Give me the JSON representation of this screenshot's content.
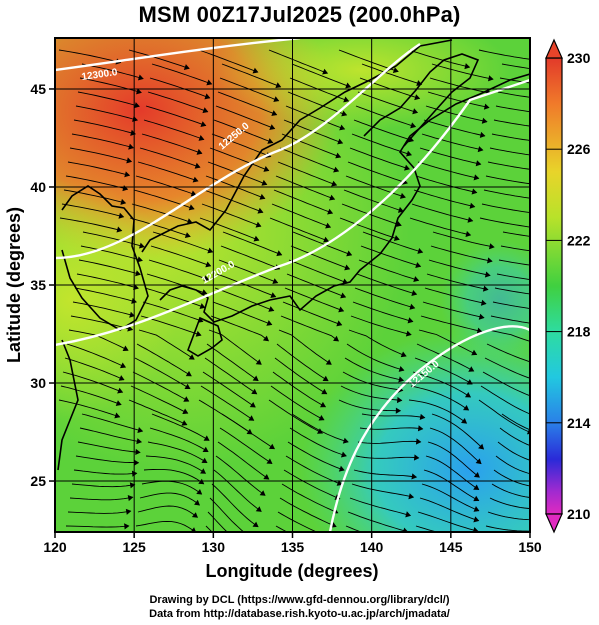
{
  "title": "MSM 00Z17Jul2025 (200.0hPa)",
  "xaxis": {
    "label": "Longitude (degrees)",
    "range": [
      120,
      150
    ],
    "ticks": [
      120,
      125,
      130,
      135,
      140,
      145,
      150
    ]
  },
  "yaxis": {
    "label": "Latitude  (degrees)",
    "range": [
      22.4,
      47.6
    ],
    "ticks": [
      25,
      30,
      35,
      40,
      45
    ]
  },
  "colorbar": {
    "range": [
      210,
      230
    ],
    "tick_labels": [
      "230",
      "226",
      "222",
      "218",
      "214",
      "210"
    ],
    "tick_values": [
      230,
      226,
      222,
      218,
      214,
      210
    ]
  },
  "contours": [
    {
      "label": "12300.0",
      "color": "#ffffff"
    },
    {
      "label": "12250.0",
      "color": "#ffffff"
    },
    {
      "label": "12200.0",
      "color": "#ffffff"
    },
    {
      "label": "12150.0",
      "color": "#ffffff"
    }
  ],
  "footer": {
    "line1": "Drawing by DCL (https://www.gfd-dennou.org/library/dcl/)",
    "line2": "Data from http://database.rish.kyoto-u.ac.jp/arch/jmadata/"
  },
  "colors": {
    "warm": "#e8442a",
    "neutral": "#5bd23c",
    "cool": "#2aa8e6",
    "contour": "#ffffff",
    "streamline": "#000000"
  }
}
